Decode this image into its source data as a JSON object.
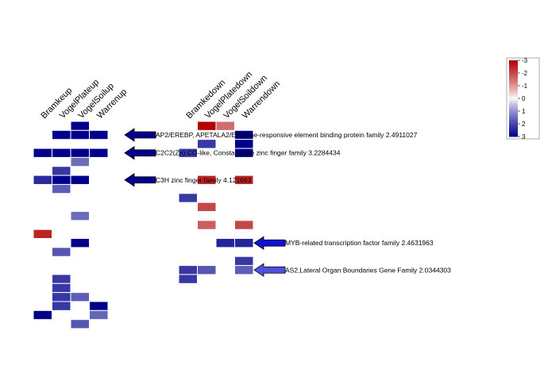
{
  "chart_data": {
    "type": "heatmap",
    "colorscale": {
      "low_color": "#00008b",
      "mid_color": "#ffffff",
      "high_color": "#b00000",
      "legend_ticks": [
        "-3",
        "-2",
        "-1",
        "0",
        "1",
        "2",
        "3"
      ],
      "legend_values": [
        -3,
        -2,
        -1,
        0,
        1,
        2,
        3
      ]
    },
    "panels": [
      {
        "columns": [
          "Bramkeup",
          "VogelPlateup",
          "VogelSoilup",
          "Warrenup"
        ],
        "cells": [
          {
            "row": 0,
            "col": 2,
            "value": 3
          },
          {
            "row": 1,
            "col": 1,
            "value": 3
          },
          {
            "row": 1,
            "col": 2,
            "value": 3
          },
          {
            "row": 1,
            "col": 3,
            "value": 3
          },
          {
            "row": 3,
            "col": 0,
            "value": 3
          },
          {
            "row": 3,
            "col": 1,
            "value": 3
          },
          {
            "row": 3,
            "col": 2,
            "value": 3
          },
          {
            "row": 3,
            "col": 3,
            "value": 3
          },
          {
            "row": 4,
            "col": 2,
            "value": 1.5
          },
          {
            "row": 5,
            "col": 1,
            "value": 2.2
          },
          {
            "row": 6,
            "col": 0,
            "value": 2.4
          },
          {
            "row": 6,
            "col": 1,
            "value": 3
          },
          {
            "row": 6,
            "col": 2,
            "value": 3
          },
          {
            "row": 7,
            "col": 1,
            "value": 1.7
          },
          {
            "row": 10,
            "col": 2,
            "value": 1.5
          },
          {
            "row": 12,
            "col": 0,
            "value": -2.5
          },
          {
            "row": 13,
            "col": 2,
            "value": 3
          },
          {
            "row": 14,
            "col": 1,
            "value": 1.8
          },
          {
            "row": 17,
            "col": 1,
            "value": 2.2
          },
          {
            "row": 18,
            "col": 1,
            "value": 2.2
          },
          {
            "row": 19,
            "col": 1,
            "value": 2.2
          },
          {
            "row": 19,
            "col": 2,
            "value": 1.7
          },
          {
            "row": 20,
            "col": 1,
            "value": 2.2
          },
          {
            "row": 20,
            "col": 3,
            "value": 3
          },
          {
            "row": 21,
            "col": 0,
            "value": 3
          },
          {
            "row": 21,
            "col": 3,
            "value": 1.6
          },
          {
            "row": 22,
            "col": 2,
            "value": 1.8
          }
        ]
      },
      {
        "columns": [
          "Bramkedown",
          "VogelPlatedown",
          "VogelSoildown",
          "Warrendown"
        ],
        "cells": [
          {
            "row": 0,
            "col": 1,
            "value": -3
          },
          {
            "row": 0,
            "col": 2,
            "value": -1.5
          },
          {
            "row": 1,
            "col": 3,
            "value": 3
          },
          {
            "row": 2,
            "col": 1,
            "value": 2.2
          },
          {
            "row": 2,
            "col": 3,
            "value": 3
          },
          {
            "row": 3,
            "col": 0,
            "value": 2.2
          },
          {
            "row": 3,
            "col": 3,
            "value": 3
          },
          {
            "row": 6,
            "col": 1,
            "value": -2.5
          },
          {
            "row": 6,
            "col": 3,
            "value": -2.5
          },
          {
            "row": 8,
            "col": 0,
            "value": 2.2
          },
          {
            "row": 9,
            "col": 1,
            "value": -2
          },
          {
            "row": 11,
            "col": 1,
            "value": -1.7
          },
          {
            "row": 11,
            "col": 3,
            "value": -2
          },
          {
            "row": 13,
            "col": 2,
            "value": 2.5
          },
          {
            "row": 13,
            "col": 3,
            "value": 2.5
          },
          {
            "row": 15,
            "col": 3,
            "value": 2.2
          },
          {
            "row": 16,
            "col": 0,
            "value": 2.2
          },
          {
            "row": 16,
            "col": 1,
            "value": 1.8
          },
          {
            "row": 16,
            "col": 3,
            "value": 1.7
          },
          {
            "row": 17,
            "col": 0,
            "value": 2.2
          }
        ]
      }
    ],
    "annotations": [
      {
        "text": "AP2/EREBP, APETALA2/Ethylene-responsive element binding protein family 2.4911027",
        "arrow_color": "#00008b",
        "arrow_row": 1,
        "panel": 0
      },
      {
        "text": "C2C2(Zn) CO-like, Constans-like zinc finger family 3.2284434",
        "arrow_color": "#00008b",
        "arrow_row": 3,
        "panel": 0
      },
      {
        "text": "C3H zinc finger family 4.121663",
        "arrow_color": "#00008b",
        "arrow_row": 6,
        "panel": 0
      },
      {
        "text": "MYB-related transcription factor family 2.4631963",
        "arrow_color": "#1010d0",
        "arrow_row": 13,
        "panel": 1
      },
      {
        "text": "AS2,Lateral Organ Boundaries Gene Family 2.0344303",
        "arrow_color": "#5050e0",
        "arrow_row": 16,
        "panel": 1
      }
    ]
  }
}
